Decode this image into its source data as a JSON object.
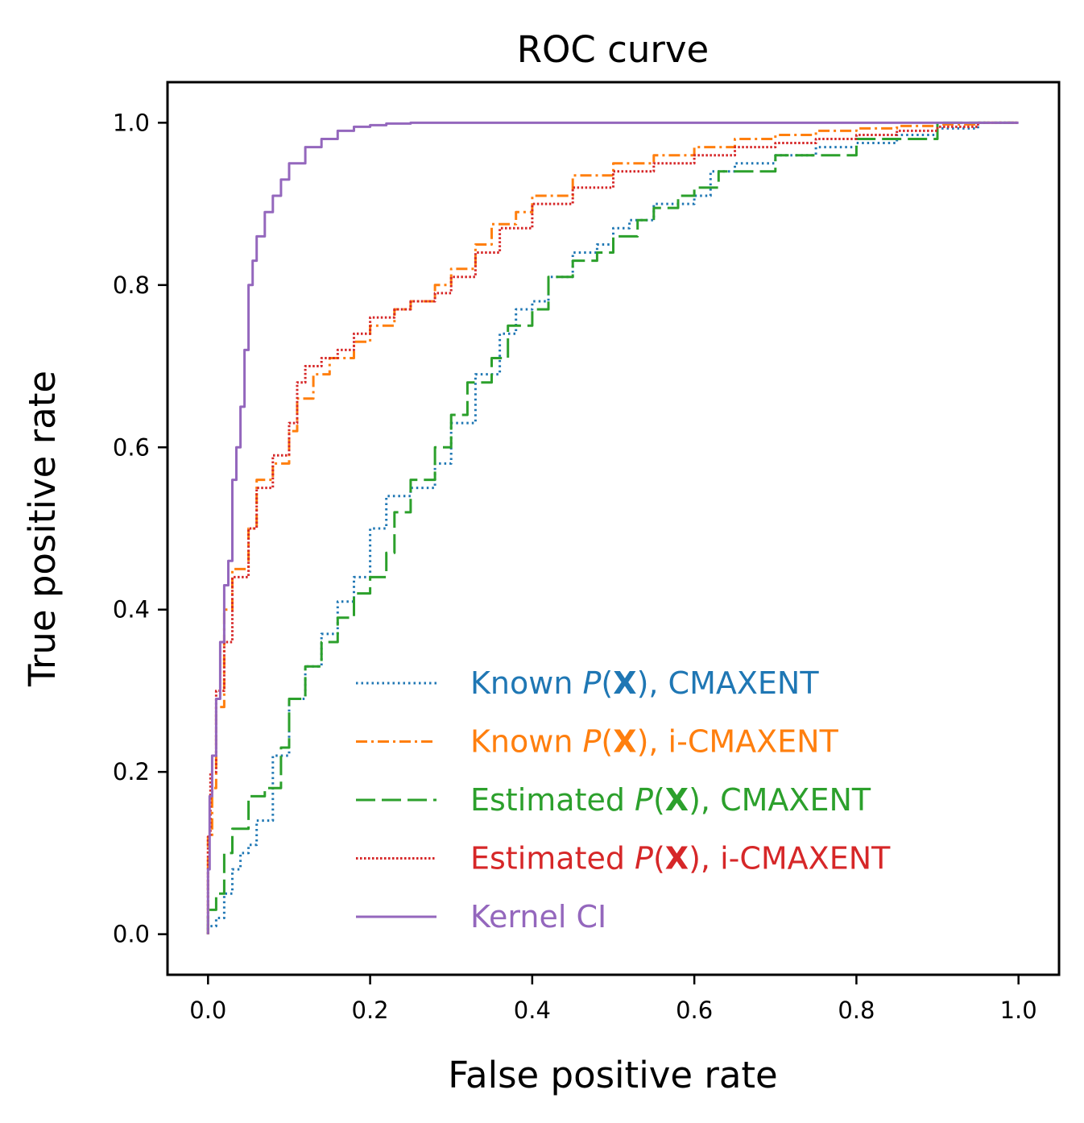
{
  "chart_data": {
    "type": "line",
    "title": "ROC curve",
    "xlabel": "False positive rate",
    "ylabel": "True positive rate",
    "xlim": [
      -0.05,
      1.05
    ],
    "ylim": [
      -0.05,
      1.05
    ],
    "xticks": [
      0.0,
      0.2,
      0.4,
      0.6,
      0.8,
      1.0
    ],
    "xtick_labels": [
      "0.0",
      "0.2",
      "0.4",
      "0.6",
      "0.8",
      "1.0"
    ],
    "yticks": [
      0.0,
      0.2,
      0.4,
      0.6,
      0.8,
      1.0
    ],
    "ytick_labels": [
      "0.0",
      "0.2",
      "0.4",
      "0.6",
      "0.8",
      "1.0"
    ],
    "grid": false,
    "legend_position": "lower-right",
    "series": [
      {
        "name": "Known P(X), CMAXENT",
        "legend": {
          "prefix": "Known ",
          "p": "P",
          "x": "X",
          "suffix": "), CMAXENT"
        },
        "color": "#1f77b4",
        "dash": "2.5 4",
        "x": [
          0.0,
          0.01,
          0.02,
          0.03,
          0.04,
          0.05,
          0.06,
          0.08,
          0.1,
          0.12,
          0.14,
          0.16,
          0.18,
          0.2,
          0.22,
          0.25,
          0.28,
          0.3,
          0.33,
          0.36,
          0.38,
          0.4,
          0.42,
          0.45,
          0.48,
          0.5,
          0.52,
          0.55,
          0.58,
          0.6,
          0.62,
          0.65,
          0.7,
          0.75,
          0.8,
          0.85,
          0.9,
          0.95,
          1.0
        ],
        "y": [
          0.0,
          0.01,
          0.02,
          0.05,
          0.08,
          0.1,
          0.11,
          0.14,
          0.22,
          0.29,
          0.33,
          0.37,
          0.41,
          0.44,
          0.5,
          0.54,
          0.55,
          0.58,
          0.63,
          0.69,
          0.74,
          0.77,
          0.78,
          0.81,
          0.84,
          0.85,
          0.87,
          0.88,
          0.9,
          0.9,
          0.91,
          0.94,
          0.95,
          0.96,
          0.97,
          0.975,
          0.985,
          0.993,
          1.0
        ]
      },
      {
        "name": "Known P(X), i-CMAXENT",
        "legend": {
          "prefix": "Known ",
          "p": "P",
          "x": "X",
          "suffix": "), i-CMAXENT"
        },
        "color": "#ff7f0e",
        "dash": "14 5 3 5",
        "x": [
          0.0,
          0.005,
          0.01,
          0.02,
          0.03,
          0.05,
          0.06,
          0.08,
          0.1,
          0.11,
          0.13,
          0.15,
          0.18,
          0.2,
          0.23,
          0.25,
          0.28,
          0.3,
          0.33,
          0.35,
          0.38,
          0.4,
          0.45,
          0.5,
          0.55,
          0.6,
          0.65,
          0.7,
          0.75,
          0.8,
          0.85,
          0.9,
          0.95,
          1.0
        ],
        "y": [
          0.0,
          0.12,
          0.18,
          0.28,
          0.4,
          0.45,
          0.5,
          0.56,
          0.58,
          0.62,
          0.66,
          0.69,
          0.71,
          0.73,
          0.75,
          0.77,
          0.78,
          0.8,
          0.82,
          0.85,
          0.875,
          0.89,
          0.91,
          0.935,
          0.95,
          0.96,
          0.97,
          0.98,
          0.985,
          0.99,
          0.993,
          0.996,
          0.998,
          1.0
        ]
      },
      {
        "name": "Estimated P(X), CMAXENT",
        "legend": {
          "prefix": "Estimated ",
          "p": "P",
          "x": "X",
          "suffix": "), CMAXENT"
        },
        "color": "#2ca02c",
        "dash": "24 8",
        "x": [
          0.0,
          0.01,
          0.02,
          0.03,
          0.05,
          0.07,
          0.09,
          0.1,
          0.12,
          0.14,
          0.16,
          0.18,
          0.2,
          0.22,
          0.23,
          0.25,
          0.28,
          0.3,
          0.32,
          0.35,
          0.37,
          0.4,
          0.42,
          0.45,
          0.48,
          0.5,
          0.53,
          0.55,
          0.58,
          0.6,
          0.63,
          0.7,
          0.8,
          0.9,
          1.0
        ],
        "y": [
          0.0,
          0.03,
          0.05,
          0.1,
          0.13,
          0.17,
          0.18,
          0.23,
          0.29,
          0.33,
          0.36,
          0.39,
          0.42,
          0.44,
          0.47,
          0.52,
          0.56,
          0.6,
          0.64,
          0.68,
          0.71,
          0.75,
          0.77,
          0.81,
          0.83,
          0.84,
          0.86,
          0.88,
          0.895,
          0.91,
          0.92,
          0.94,
          0.96,
          0.98,
          1.0
        ]
      },
      {
        "name": "Estimated P(X), i-CMAXENT",
        "legend": {
          "prefix": "Estimated ",
          "p": "P",
          "x": "X",
          "suffix": "), i-CMAXENT"
        },
        "color": "#d62728",
        "dash": "2.5 2.5",
        "x": [
          0.0,
          0.003,
          0.01,
          0.02,
          0.03,
          0.05,
          0.06,
          0.08,
          0.1,
          0.11,
          0.12,
          0.14,
          0.16,
          0.18,
          0.2,
          0.23,
          0.25,
          0.28,
          0.3,
          0.33,
          0.36,
          0.4,
          0.45,
          0.5,
          0.55,
          0.6,
          0.65,
          0.7,
          0.75,
          0.8,
          0.85,
          0.9,
          0.95,
          1.0
        ],
        "y": [
          0.0,
          0.12,
          0.2,
          0.3,
          0.36,
          0.44,
          0.5,
          0.55,
          0.59,
          0.63,
          0.68,
          0.7,
          0.71,
          0.72,
          0.74,
          0.76,
          0.77,
          0.78,
          0.79,
          0.81,
          0.84,
          0.87,
          0.9,
          0.92,
          0.94,
          0.95,
          0.96,
          0.97,
          0.975,
          0.98,
          0.985,
          0.99,
          0.995,
          1.0
        ]
      },
      {
        "name": "Kernel CI",
        "legend": {
          "plain": "Kernel CI"
        },
        "color": "#9467bd",
        "dash": "",
        "x": [
          0.0,
          0.002,
          0.005,
          0.01,
          0.015,
          0.02,
          0.025,
          0.03,
          0.035,
          0.04,
          0.045,
          0.05,
          0.055,
          0.06,
          0.07,
          0.08,
          0.09,
          0.1,
          0.12,
          0.14,
          0.16,
          0.18,
          0.2,
          0.22,
          0.25,
          0.3,
          0.4,
          0.6,
          0.8,
          1.0
        ],
        "y": [
          0.0,
          0.08,
          0.17,
          0.22,
          0.29,
          0.36,
          0.43,
          0.46,
          0.56,
          0.6,
          0.65,
          0.72,
          0.8,
          0.83,
          0.86,
          0.89,
          0.91,
          0.93,
          0.95,
          0.97,
          0.98,
          0.99,
          0.995,
          0.997,
          0.999,
          1.0,
          1.0,
          1.0,
          1.0,
          1.0
        ]
      }
    ]
  }
}
